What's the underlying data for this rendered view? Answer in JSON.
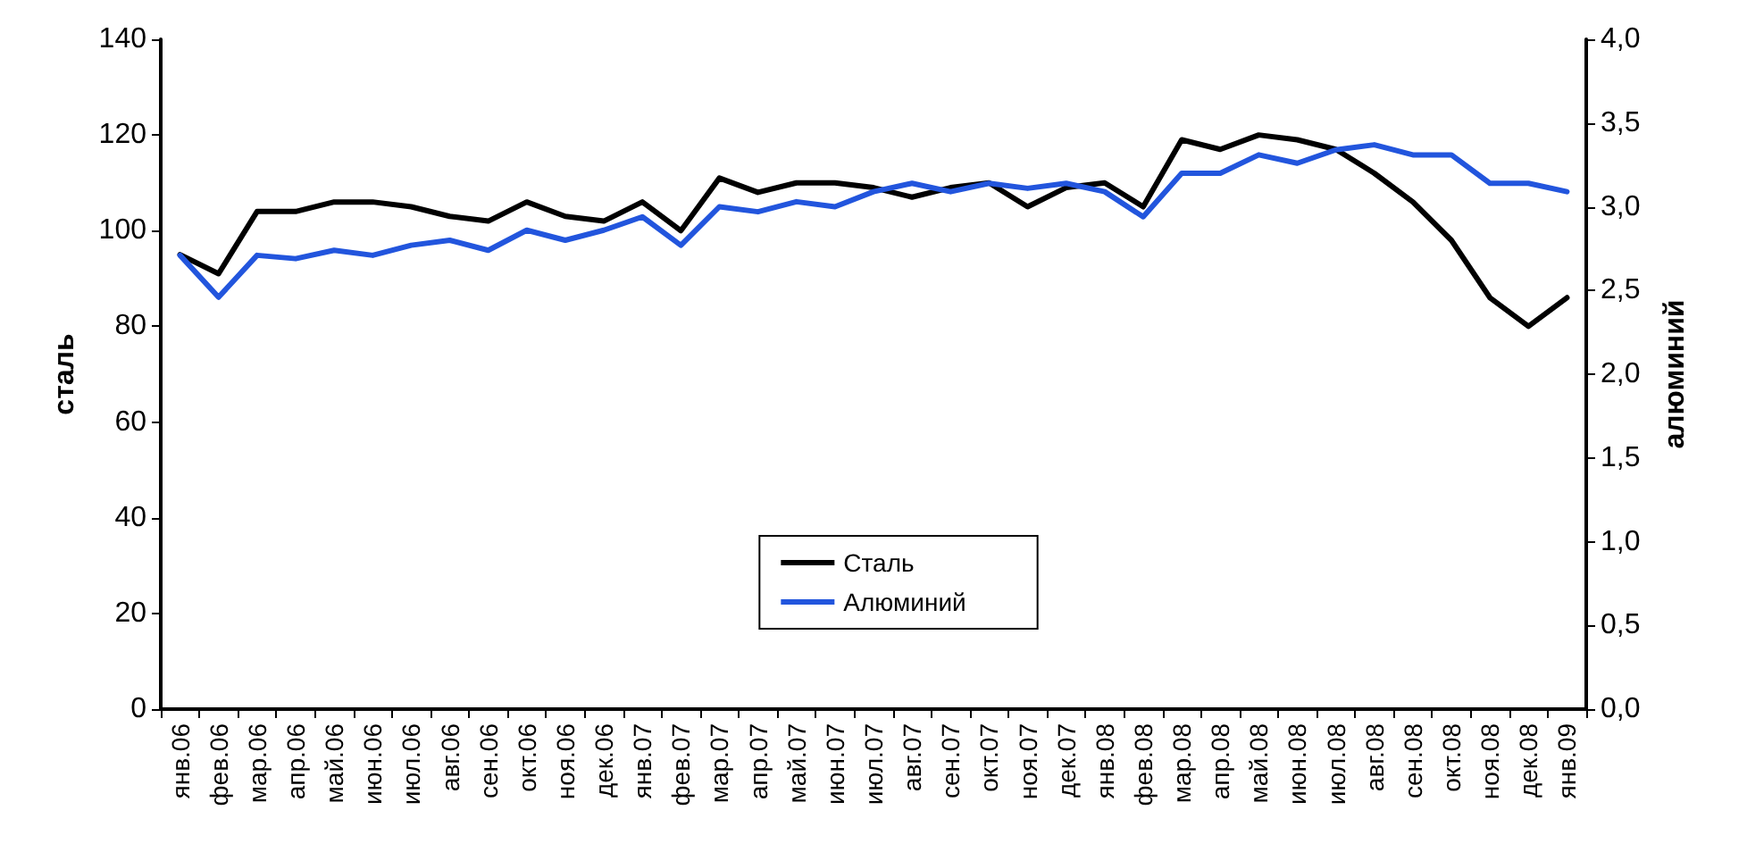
{
  "chart_data": {
    "type": "line",
    "ylabel": "сталь",
    "y2label": "алюминий",
    "categories": [
      "янв.06",
      "фев.06",
      "мар.06",
      "апр.06",
      "май.06",
      "июн.06",
      "июл.06",
      "авг.06",
      "сен.06",
      "окт.06",
      "ноя.06",
      "дек.06",
      "янв.07",
      "фев.07",
      "мар.07",
      "апр.07",
      "май.07",
      "июн.07",
      "июл.07",
      "авг.07",
      "сен.07",
      "окт.07",
      "ноя.07",
      "дек.07",
      "янв.08",
      "фев.08",
      "мар.08",
      "апр.08",
      "май.08",
      "июн.08",
      "июл.08",
      "авг.08",
      "сен.08",
      "окт.08",
      "ноя.08",
      "дек.08",
      "янв.09"
    ],
    "series": [
      {
        "name": "Сталь",
        "color": "#000000",
        "values": [
          95,
          91,
          104,
          104,
          106,
          106,
          105,
          103,
          102,
          106,
          103,
          102,
          106,
          100,
          111,
          108,
          110,
          110,
          109,
          107,
          109,
          110,
          105,
          109,
          110,
          105,
          119,
          117,
          120,
          119,
          117,
          112,
          106,
          98,
          86,
          80,
          86
        ]
      },
      {
        "name": "Алюминий",
        "color": "#2255dd",
        "axis": "y2",
        "values": [
          2.71,
          2.46,
          2.71,
          2.69,
          2.74,
          2.71,
          2.77,
          2.8,
          2.74,
          2.86,
          2.8,
          2.86,
          2.94,
          2.77,
          3.0,
          2.97,
          3.03,
          3.0,
          3.09,
          3.14,
          3.09,
          3.14,
          3.11,
          3.14,
          3.09,
          2.94,
          3.2,
          3.2,
          3.31,
          3.26,
          3.34,
          3.37,
          3.31,
          3.31,
          3.14,
          3.14,
          3.09
        ]
      }
    ],
    "ylim": [
      0,
      140
    ],
    "yticks": [
      0,
      20,
      40,
      60,
      80,
      100,
      120,
      140
    ],
    "y2lim": [
      0,
      4
    ],
    "y2ticks": [
      {
        "value": 0,
        "label": "0,0"
      },
      {
        "value": 0.5,
        "label": "0,5"
      },
      {
        "value": 1,
        "label": "1,0"
      },
      {
        "value": 1.5,
        "label": "1,5"
      },
      {
        "value": 2,
        "label": "2,0"
      },
      {
        "value": 2.5,
        "label": "2,5"
      },
      {
        "value": 3,
        "label": "3,0"
      },
      {
        "value": 3.5,
        "label": "3,5"
      },
      {
        "value": 4,
        "label": "4,0"
      }
    ],
    "grid": false,
    "legend": "bottom",
    "marker": "none",
    "line_style": "solid"
  }
}
